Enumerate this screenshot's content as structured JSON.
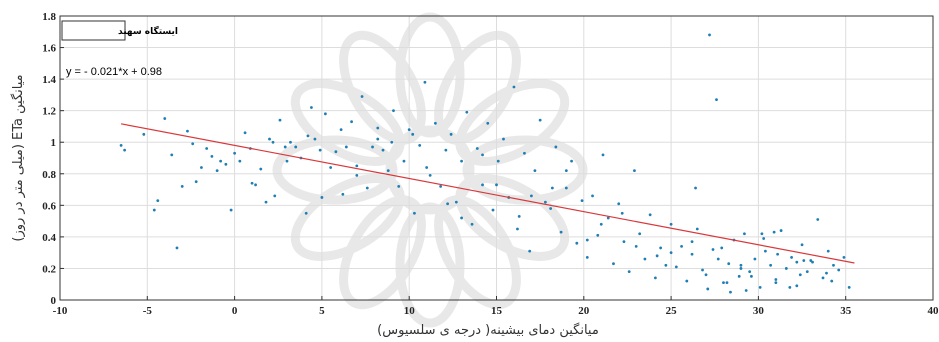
{
  "chart_data": {
    "type": "scatter",
    "legend": "ایستگاه سهند",
    "equation": "y = - 0.021*x + 0.98",
    "xlabel": "میانگین دمای بیشینه( درجه ی سلسیوس)",
    "ylabel": "میانگین ETa (میلی متر در روز)",
    "xlim": [
      -10,
      40
    ],
    "ylim": [
      0,
      1.8
    ],
    "x_ticks": [
      "-10",
      "-5",
      "0",
      "5",
      "10",
      "15",
      "20",
      "25",
      "30",
      "35",
      "40"
    ],
    "y_ticks": [
      "0",
      "0.2",
      "0.4",
      "0.6",
      "0.8",
      "1",
      "1.2",
      "1.4",
      "1.6",
      "1.8"
    ],
    "grid": true,
    "regression": {
      "slope": -0.021,
      "intercept": 0.98,
      "x_range": [
        -6.5,
        35.5
      ]
    },
    "series": [
      {
        "x": [
          -6.5,
          -6.3,
          -5.2,
          -4.6,
          -4.4,
          -4.0,
          -3.6,
          -3.3,
          -3.0,
          -2.7,
          -2.4,
          -2.2,
          -1.9,
          -1.6,
          -1.3,
          -1.0,
          -0.8,
          -0.5,
          -0.2,
          0.0,
          0.3,
          0.6,
          0.9,
          1.2,
          1.5,
          1.8,
          2.0,
          2.3,
          2.6,
          2.9,
          3.2,
          3.5,
          3.8,
          4.1,
          4.4,
          4.6,
          4.9,
          5.2,
          5.5,
          5.8,
          6.1,
          6.4,
          6.7,
          7.0,
          7.3,
          7.6,
          7.9,
          8.2,
          8.5,
          8.8,
          9.1,
          9.4,
          9.7,
          10.0,
          10.3,
          10.6,
          10.9,
          11.2,
          11.5,
          11.8,
          12.1,
          12.4,
          12.7,
          13.0,
          13.3,
          13.6,
          13.9,
          14.2,
          14.5,
          14.8,
          15.1,
          15.4,
          15.7,
          16.0,
          16.3,
          16.6,
          16.9,
          17.2,
          17.5,
          17.8,
          18.1,
          18.4,
          18.7,
          19.0,
          19.3,
          19.6,
          19.9,
          20.2,
          20.5,
          20.8,
          21.1,
          21.4,
          21.7,
          22.0,
          22.3,
          22.6,
          22.9,
          23.2,
          23.5,
          23.8,
          24.1,
          24.4,
          24.7,
          25.0,
          25.3,
          25.6,
          25.9,
          26.2,
          26.5,
          26.8,
          27.1,
          27.4,
          27.7,
          28.0,
          28.3,
          28.6,
          28.9,
          29.2,
          29.5,
          29.8,
          30.1,
          30.4,
          30.7,
          31.0,
          31.3,
          31.6,
          31.9,
          32.2,
          32.5,
          32.8,
          33.1,
          33.4,
          33.7,
          34.0,
          34.3,
          34.6,
          34.9,
          35.2,
          1.0,
          3.0,
          5.0,
          7.0,
          9.0,
          11.0,
          13.0,
          15.0,
          17.0,
          19.0,
          21.0,
          23.0,
          25.0,
          27.0,
          29.0,
          31.0,
          33.0,
          2.2,
          4.2,
          6.2,
          8.2,
          10.2,
          12.2,
          14.2,
          16.2,
          18.2,
          20.2,
          22.2,
          24.2,
          26.2,
          28.2,
          30.2,
          32.2,
          34.2,
          27.2,
          27.6,
          28.4,
          29.0,
          29.6,
          30.3,
          31.1,
          31.8,
          32.4,
          26.4,
          27.9,
          29.3,
          30.9,
          32.6,
          33.9
        ],
        "y": [
          0.98,
          0.95,
          1.05,
          0.57,
          0.63,
          1.15,
          0.92,
          0.33,
          0.72,
          1.07,
          0.99,
          0.75,
          0.84,
          0.96,
          0.91,
          0.82,
          0.88,
          0.86,
          0.57,
          0.93,
          0.88,
          1.06,
          0.96,
          0.73,
          0.83,
          0.62,
          1.02,
          0.66,
          1.14,
          0.97,
          1.0,
          0.97,
          0.9,
          0.55,
          1.22,
          1.02,
          0.95,
          1.18,
          0.84,
          0.94,
          1.08,
          0.97,
          1.13,
          0.85,
          1.29,
          0.71,
          0.97,
          1.02,
          0.95,
          0.82,
          1.2,
          0.72,
          0.88,
          1.08,
          0.55,
          0.98,
          1.38,
          0.79,
          1.12,
          0.72,
          0.95,
          1.05,
          0.62,
          0.88,
          1.19,
          0.48,
          0.96,
          0.73,
          1.12,
          0.57,
          0.88,
          1.02,
          0.65,
          1.35,
          0.53,
          0.93,
          0.31,
          0.82,
          1.14,
          0.62,
          0.58,
          0.97,
          0.43,
          0.71,
          0.88,
          0.36,
          0.63,
          0.27,
          0.66,
          0.41,
          0.92,
          0.52,
          0.23,
          0.61,
          0.37,
          0.18,
          0.82,
          0.42,
          0.26,
          0.54,
          0.14,
          0.33,
          0.22,
          0.48,
          0.21,
          0.34,
          0.12,
          0.29,
          0.45,
          0.19,
          0.07,
          0.32,
          0.26,
          0.11,
          0.23,
          0.38,
          0.15,
          0.42,
          0.18,
          0.26,
          0.08,
          0.31,
          0.22,
          0.13,
          0.44,
          0.2,
          0.27,
          0.09,
          0.35,
          0.18,
          0.24,
          0.51,
          0.14,
          0.31,
          0.22,
          0.19,
          0.27,
          0.08,
          0.74,
          0.88,
          0.65,
          0.79,
          1.0,
          0.84,
          0.52,
          0.73,
          0.66,
          0.82,
          0.48,
          0.34,
          0.3,
          0.16,
          0.2,
          0.11,
          0.25,
          1.0,
          1.04,
          0.67,
          1.09,
          1.05,
          0.61,
          0.92,
          0.45,
          0.71,
          0.38,
          0.55,
          0.28,
          0.37,
          0.11,
          0.42,
          0.24,
          0.12,
          1.68,
          1.27,
          0.05,
          0.22,
          0.15,
          0.39,
          0.29,
          0.08,
          0.16,
          0.71,
          0.33,
          0.06,
          0.43,
          0.25,
          0.17
        ]
      }
    ],
    "colors": {
      "points": "#1f7fb4",
      "regression": "#d9383b",
      "grid": "#dddddd"
    }
  }
}
